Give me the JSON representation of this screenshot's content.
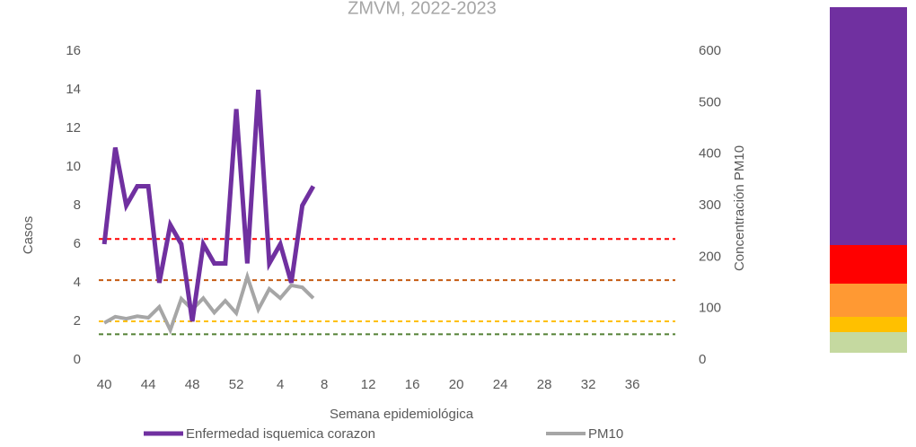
{
  "chart_data": {
    "type": "line",
    "title": "ZMVM, 2022-2023",
    "x_label": "Semana epidemiológica",
    "y_label": "Casos",
    "y2_label": "Concentración PM10",
    "categories": [
      "40",
      null,
      null,
      null,
      "44",
      null,
      null,
      null,
      "48",
      null,
      null,
      null,
      "52",
      null,
      null,
      null,
      "4",
      null,
      null,
      null,
      "8",
      null,
      null,
      null,
      "12",
      null,
      null,
      null,
      "16",
      null,
      null,
      null,
      "20",
      null,
      null,
      null,
      "24",
      null,
      null,
      null,
      "28",
      null,
      null,
      null,
      "32",
      null,
      null,
      null,
      "36",
      null,
      null,
      null
    ],
    "series": [
      {
        "name": "Enfermedad isquemica corazon",
        "color": "#7030a0",
        "axis": "y",
        "values": [
          6,
          11,
          8,
          9,
          9,
          4,
          7,
          6,
          2,
          6,
          5,
          5,
          13,
          5,
          14,
          5,
          6,
          4,
          8,
          9,
          null,
          null,
          null,
          null,
          null,
          null,
          null,
          null,
          null,
          null,
          null,
          null,
          null,
          null,
          null,
          null,
          null,
          null,
          null,
          null,
          null,
          null,
          null,
          null,
          null,
          null,
          null,
          null,
          null,
          null,
          null,
          null
        ]
      },
      {
        "name": "PM10",
        "color": "#a6a6a6",
        "axis": "y2",
        "values": [
          72,
          84,
          80,
          85,
          82,
          103,
          58,
          119,
          98,
          120,
          92,
          115,
          91,
          162,
          98,
          138,
          120,
          145,
          141,
          120,
          null,
          null,
          null,
          null,
          null,
          null,
          null,
          null,
          null,
          null,
          null,
          null,
          null,
          null,
          null,
          null,
          null,
          null,
          null,
          null,
          null,
          null,
          null,
          null,
          null,
          null,
          null,
          null,
          null,
          null,
          null,
          null
        ]
      }
    ],
    "thresholds": [
      {
        "value": 50,
        "color": "#538135"
      },
      {
        "value": 75,
        "color": "#ffc000"
      },
      {
        "value": 155,
        "color": "#c55a11"
      },
      {
        "value": 235,
        "color": "#ff0000"
      }
    ],
    "ylim": [
      0,
      16
    ],
    "yticks": [
      0,
      2,
      4,
      6,
      8,
      10,
      12,
      14,
      16
    ],
    "y2lim": [
      0,
      600
    ],
    "y2ticks": [
      0,
      100,
      200,
      300,
      400,
      500,
      600
    ],
    "legend": "bottom"
  }
}
